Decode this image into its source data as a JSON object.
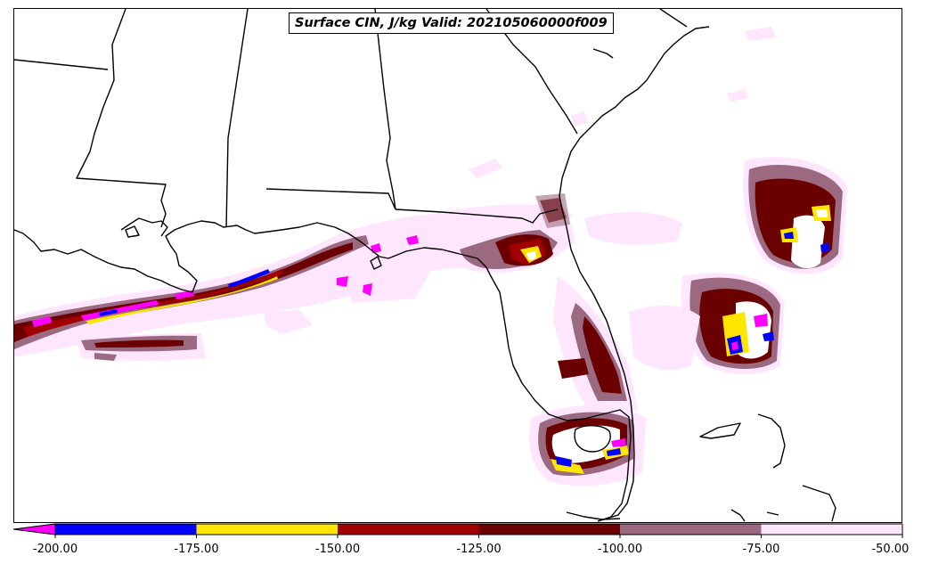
{
  "title": "Surface CIN, J/kg Valid: 202105060000f009",
  "colorbar": {
    "ticks": [
      "-200.00",
      "-175.00",
      "-150.00",
      "-125.00",
      "-100.00",
      "-75.00",
      "-50.00"
    ],
    "bins": [
      {
        "from": -200,
        "to": -175,
        "color": "#0000ff"
      },
      {
        "from": -175,
        "to": -150,
        "color": "#ffe600"
      },
      {
        "from": -150,
        "to": -125,
        "color": "#a00000"
      },
      {
        "from": -125,
        "to": -100,
        "color": "#6b0000"
      },
      {
        "from": -100,
        "to": -75,
        "color": "#9c6a80"
      },
      {
        "from": -75,
        "to": -50,
        "color": "#ffe6ff"
      }
    ],
    "under_color": "#ff00ff",
    "extend": "min"
  },
  "colors": {
    "outline": "#000000",
    "lightest": "#ffe6ff",
    "mauve": "#9c6a80",
    "dark_red": "#6b0000",
    "red": "#a00000",
    "yellow": "#ffe600",
    "blue": "#0000ff",
    "magenta": "#ff00ff"
  }
}
